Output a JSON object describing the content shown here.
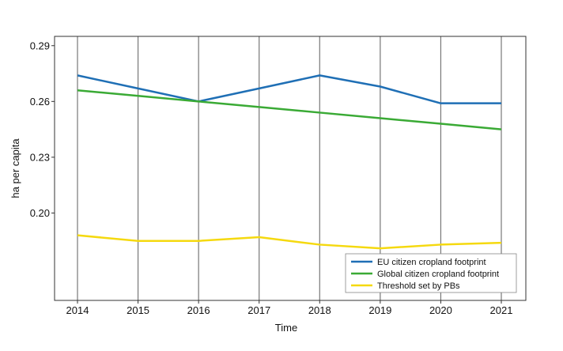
{
  "chart_data": {
    "type": "line",
    "title": "",
    "xlabel": "Time",
    "ylabel": "ha per capita",
    "x": [
      "2014",
      "2015",
      "2016",
      "2017",
      "2018",
      "2019",
      "2020",
      "2021"
    ],
    "y_ticks": [
      "0.20",
      "0.23",
      "0.26",
      "0.29"
    ],
    "ylim": [
      0.153,
      0.295
    ],
    "grid": "vertical",
    "legend_position": "bottom-right",
    "series": [
      {
        "name": "EU citizen cropland footprint",
        "color": "#1f6fb5",
        "values": [
          0.274,
          0.267,
          0.26,
          0.267,
          0.274,
          0.268,
          0.259,
          0.259
        ]
      },
      {
        "name": "Global citizen cropland footprint",
        "color": "#3aaa35",
        "values": [
          0.266,
          0.263,
          0.26,
          0.257,
          0.254,
          0.251,
          0.248,
          0.245
        ]
      },
      {
        "name": "Threshold set by PBs",
        "color": "#f5d90f",
        "values": [
          0.188,
          0.185,
          0.185,
          0.187,
          0.183,
          0.181,
          0.183,
          0.184
        ]
      }
    ]
  }
}
